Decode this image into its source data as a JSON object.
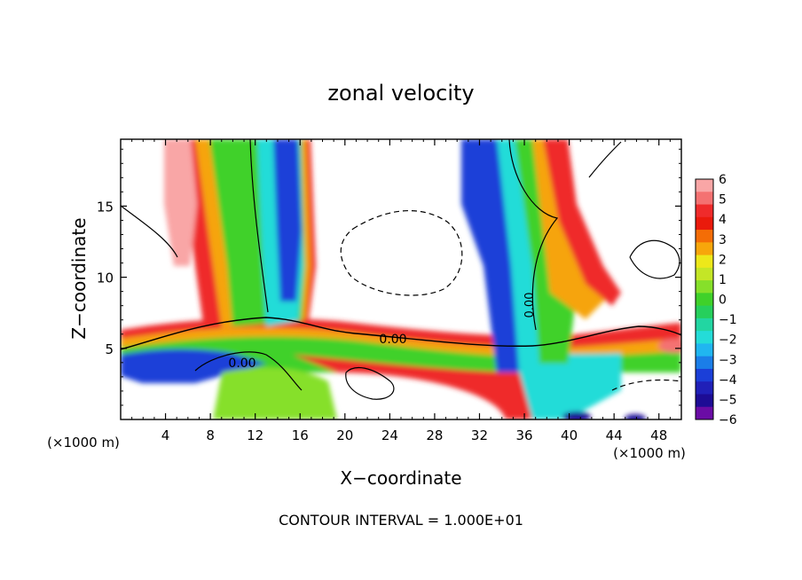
{
  "chart_data": {
    "type": "heatmap",
    "title": "zonal velocity",
    "xlabel": "X−coordinate",
    "ylabel": "Z−coordinate",
    "x_unit_left": "(×1000 m)",
    "x_unit_right": "(×1000 m)",
    "footer": "CONTOUR INTERVAL = 1.000E+01",
    "xlim": [
      0,
      50
    ],
    "ylim": [
      0,
      19.7
    ],
    "x_ticks": [
      "4",
      "8",
      "12",
      "16",
      "20",
      "24",
      "28",
      "32",
      "36",
      "40",
      "44",
      "48"
    ],
    "y_ticks": [
      "5",
      "10",
      "15"
    ],
    "contour_labels": [
      {
        "text": "0.00",
        "x": 24.5,
        "y": 5.7
      },
      {
        "text": "0.00",
        "x": 10.8,
        "y": 4.0
      },
      {
        "text": "0.00",
        "x": 36.4,
        "y": 8.2
      }
    ],
    "colorbar": {
      "labels": [
        "6",
        "5",
        "4",
        "3",
        "2",
        "1",
        "0",
        "−1",
        "−2",
        "−3",
        "−4",
        "−5",
        "−6"
      ],
      "colors": [
        "#f9a6a6",
        "#f47272",
        "#ef2b2b",
        "#ea1a0c",
        "#f46d06",
        "#f7a60b",
        "#ede81a",
        "#c4e626",
        "#86e02a",
        "#3fd12a",
        "#26cf5c",
        "#22d6a2",
        "#24dcd8",
        "#20b6f0",
        "#1b7ee8",
        "#1b3fd8",
        "#2020b8",
        "#1d0c95",
        "#6a0ca5"
      ]
    }
  }
}
